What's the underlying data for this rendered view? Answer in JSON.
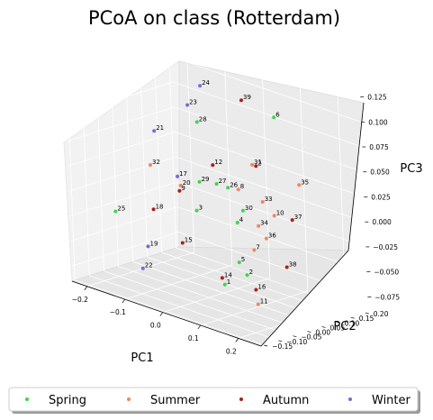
{
  "chart_data": {
    "type": "scatter",
    "title": "PCoA on class (Rotterdam)",
    "xlabel": "PC1",
    "ylabel": "PC2",
    "zlabel": "PC3",
    "xticks": [
      "−0.2",
      "−0.1",
      "0.0",
      "0.1",
      "0.2"
    ],
    "yticks": [
      "−0.15",
      "−0.10",
      "−0.05",
      "0.00",
      "0.05",
      "0.10",
      "0.15",
      "0.20"
    ],
    "zticks": [
      "−0.075",
      "−0.050",
      "−0.025",
      "0.000",
      "0.025",
      "0.050",
      "0.075",
      "0.100",
      "0.125"
    ],
    "grid": true,
    "legend_position": "bottom",
    "series": [
      {
        "name": "Spring",
        "color": "#3fd44f",
        "points": [
          {
            "label": "1",
            "x": 0.13,
            "y": -0.11,
            "z": -0.05
          },
          {
            "label": "2",
            "x": 0.12,
            "y": -0.02,
            "z": -0.05
          },
          {
            "label": "3",
            "x": -0.04,
            "y": 0.02,
            "z": -0.01
          },
          {
            "label": "4",
            "x": 0.06,
            "y": 0.03,
            "z": -0.01
          },
          {
            "label": "5",
            "x": 0.1,
            "y": -0.02,
            "z": -0.04
          },
          {
            "label": "6",
            "x": 0.05,
            "y": 0.18,
            "z": 0.08
          },
          {
            "label": "25",
            "x": -0.14,
            "y": -0.13,
            "z": -0.01
          },
          {
            "label": "26",
            "x": 0.03,
            "y": 0.04,
            "z": 0.02
          },
          {
            "label": "27",
            "x": 0.0,
            "y": 0.04,
            "z": 0.02
          },
          {
            "label": "28",
            "x": -0.07,
            "y": 0.07,
            "z": 0.07
          },
          {
            "label": "29",
            "x": -0.03,
            "y": 0.02,
            "z": 0.02
          },
          {
            "label": "30",
            "x": 0.06,
            "y": 0.05,
            "z": 0.0
          }
        ]
      },
      {
        "name": "Summer",
        "color": "#f4845f",
        "points": [
          {
            "label": "7",
            "x": 0.11,
            "y": 0.02,
            "z": -0.03
          },
          {
            "label": "8",
            "x": 0.05,
            "y": 0.05,
            "z": 0.02
          },
          {
            "label": "10",
            "x": 0.12,
            "y": 0.08,
            "z": 0.0
          },
          {
            "label": "11",
            "x": 0.17,
            "y": -0.05,
            "z": -0.07
          },
          {
            "label": "20",
            "x": -0.12,
            "y": 0.07,
            "z": 0.0
          },
          {
            "label": "31",
            "x": 0.05,
            "y": 0.1,
            "z": 0.04
          },
          {
            "label": "32",
            "x": -0.16,
            "y": 0.02,
            "z": 0.02
          },
          {
            "label": "33",
            "x": 0.09,
            "y": 0.08,
            "z": 0.01
          },
          {
            "label": "34",
            "x": 0.1,
            "y": 0.05,
            "z": -0.01
          },
          {
            "label": "35",
            "x": 0.15,
            "y": 0.13,
            "z": 0.03
          },
          {
            "label": "36",
            "x": 0.12,
            "y": 0.05,
            "z": -0.02
          }
        ]
      },
      {
        "name": "Autumn",
        "color": "#a8201a",
        "points": [
          {
            "label": "2",
            "x": 0.06,
            "y": 0.1,
            "z": 0.04
          },
          {
            "label": "9",
            "x": -0.1,
            "y": 0.04,
            "z": 0.0
          },
          {
            "label": "12",
            "x": -0.04,
            "y": 0.08,
            "z": 0.03
          },
          {
            "label": "14",
            "x": 0.1,
            "y": -0.08,
            "z": -0.05
          },
          {
            "label": "15",
            "x": -0.05,
            "y": -0.02,
            "z": -0.04
          },
          {
            "label": "16",
            "x": 0.15,
            "y": -0.03,
            "z": -0.06
          },
          {
            "label": "18",
            "x": -0.14,
            "y": 0.0,
            "z": -0.02
          },
          {
            "label": "37",
            "x": 0.16,
            "y": 0.09,
            "z": 0.0
          },
          {
            "label": "38",
            "x": 0.18,
            "y": 0.04,
            "z": -0.04
          },
          {
            "label": "39",
            "x": -0.02,
            "y": 0.16,
            "z": 0.09
          }
        ]
      },
      {
        "name": "Winter",
        "color": "#7b68d9",
        "points": [
          {
            "label": "17",
            "x": -0.12,
            "y": 0.06,
            "z": 0.01
          },
          {
            "label": "19",
            "x": -0.08,
            "y": -0.1,
            "z": -0.04
          },
          {
            "label": "21",
            "x": -0.17,
            "y": 0.05,
            "z": 0.05
          },
          {
            "label": "22",
            "x": -0.08,
            "y": -0.12,
            "z": -0.06
          },
          {
            "label": "23",
            "x": -0.11,
            "y": 0.09,
            "z": 0.08
          },
          {
            "label": "24",
            "x": -0.09,
            "y": 0.11,
            "z": 0.1
          }
        ]
      }
    ]
  }
}
